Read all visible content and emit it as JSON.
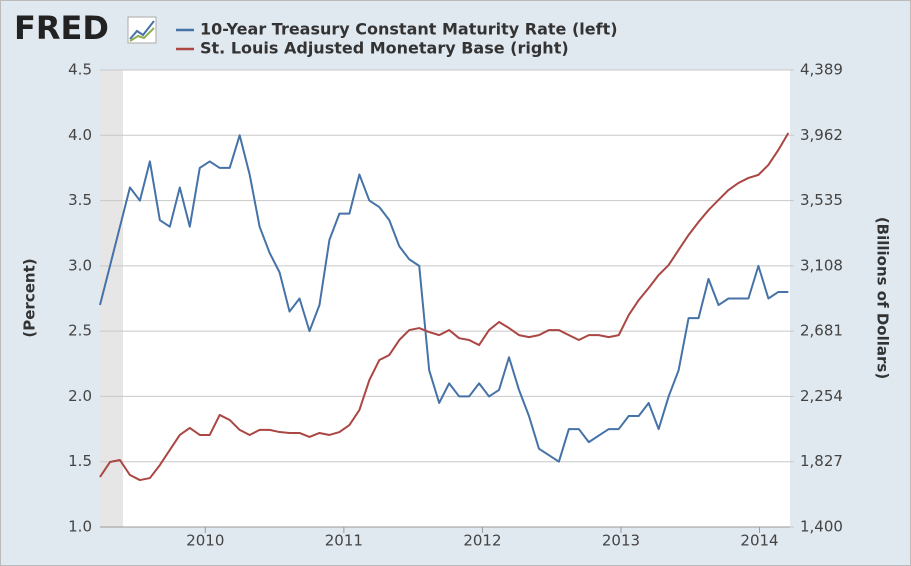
{
  "logo": "FRED",
  "chart_data": {
    "type": "line",
    "x": [
      2009.24,
      2009.312,
      2009.384,
      2009.456,
      2009.528,
      2009.6,
      2009.672,
      2009.744,
      2009.816,
      2009.888,
      2009.96,
      2010.032,
      2010.104,
      2010.176,
      2010.248,
      2010.32,
      2010.392,
      2010.464,
      2010.536,
      2010.608,
      2010.68,
      2010.752,
      2010.824,
      2010.896,
      2010.968,
      2011.04,
      2011.112,
      2011.184,
      2011.256,
      2011.328,
      2011.4,
      2011.472,
      2011.544,
      2011.616,
      2011.688,
      2011.76,
      2011.832,
      2011.904,
      2011.976,
      2012.048,
      2012.12,
      2012.192,
      2012.264,
      2012.336,
      2012.408,
      2012.48,
      2012.552,
      2012.624,
      2012.696,
      2012.768,
      2012.84,
      2012.912,
      2012.984,
      2013.056,
      2013.128,
      2013.2,
      2013.272,
      2013.344,
      2013.416,
      2013.488,
      2013.56,
      2013.632,
      2013.704,
      2013.776,
      2013.848,
      2013.92,
      2013.992,
      2014.064,
      2014.136,
      2014.208
    ],
    "series": [
      {
        "name": "10-Year Treasury Constant Maturity Rate (left)",
        "color": "#4572a7",
        "axis": "y",
        "values": [
          2.7,
          3.0,
          3.3,
          3.6,
          3.5,
          3.8,
          3.35,
          3.3,
          3.6,
          3.3,
          3.75,
          3.8,
          3.75,
          3.75,
          4.0,
          3.7,
          3.3,
          3.1,
          2.95,
          2.65,
          2.75,
          2.5,
          2.7,
          3.2,
          3.4,
          3.4,
          3.7,
          3.5,
          3.45,
          3.35,
          3.15,
          3.05,
          3.0,
          2.2,
          1.95,
          2.1,
          2.0,
          2.0,
          2.1,
          2.0,
          2.05,
          2.3,
          2.05,
          1.85,
          1.6,
          1.55,
          1.5,
          1.75,
          1.75,
          1.65,
          1.7,
          1.75,
          1.75,
          1.85,
          1.85,
          1.95,
          1.75,
          2.0,
          2.2,
          2.6,
          2.6,
          2.9,
          2.7,
          2.75,
          2.75,
          2.75,
          3.0,
          2.75,
          2.8,
          2.8
        ]
      },
      {
        "name": "St. Louis Adjusted Monetary Base (right)",
        "color": "#aa4643",
        "axis": "y2",
        "values": [
          1727,
          1825,
          1838,
          1740,
          1707,
          1720,
          1805,
          1904,
          2002,
          2048,
          2002,
          2002,
          2133,
          2100,
          2035,
          2002,
          2035,
          2035,
          2021,
          2015,
          2015,
          1989,
          2015,
          2002,
          2021,
          2067,
          2165,
          2361,
          2492,
          2525,
          2623,
          2688,
          2701,
          2675,
          2655,
          2688,
          2635,
          2623,
          2590,
          2688,
          2741,
          2701,
          2655,
          2642,
          2655,
          2688,
          2688,
          2655,
          2623,
          2655,
          2655,
          2642,
          2655,
          2786,
          2884,
          2963,
          3048,
          3113,
          3212,
          3310,
          3395,
          3473,
          3539,
          3604,
          3650,
          3683,
          3703,
          3768,
          3866,
          3977
        ]
      }
    ],
    "y_label": "(Percent)",
    "y2_label": "(Billions of Dollars)",
    "xlim": [
      2009.24,
      2014.22
    ],
    "xticks": [
      2010,
      2011,
      2012,
      2013,
      2014
    ],
    "ylim": [
      1.0,
      4.5
    ],
    "yticks": [
      {
        "value": 1.0,
        "label": "1.0"
      },
      1.5,
      {
        "value": 2.0,
        "label": "2.0"
      },
      2.5,
      {
        "value": 3.0,
        "label": "3.0"
      },
      3.5,
      {
        "value": 4.0,
        "label": "4.0"
      },
      4.5
    ],
    "y2lim": [
      1400,
      4389
    ],
    "y2ticks": [
      {
        "value": 1400,
        "label": "1,400"
      },
      {
        "value": 1827,
        "label": "1,827"
      },
      {
        "value": 2254,
        "label": "2,254"
      },
      {
        "value": 2681,
        "label": "2,681"
      },
      {
        "value": 3108,
        "label": "3,108"
      },
      {
        "value": 3535,
        "label": "3,535"
      },
      {
        "value": 3962,
        "label": "3,962"
      },
      {
        "value": 4389,
        "label": "4,389"
      }
    ],
    "grid": true
  }
}
